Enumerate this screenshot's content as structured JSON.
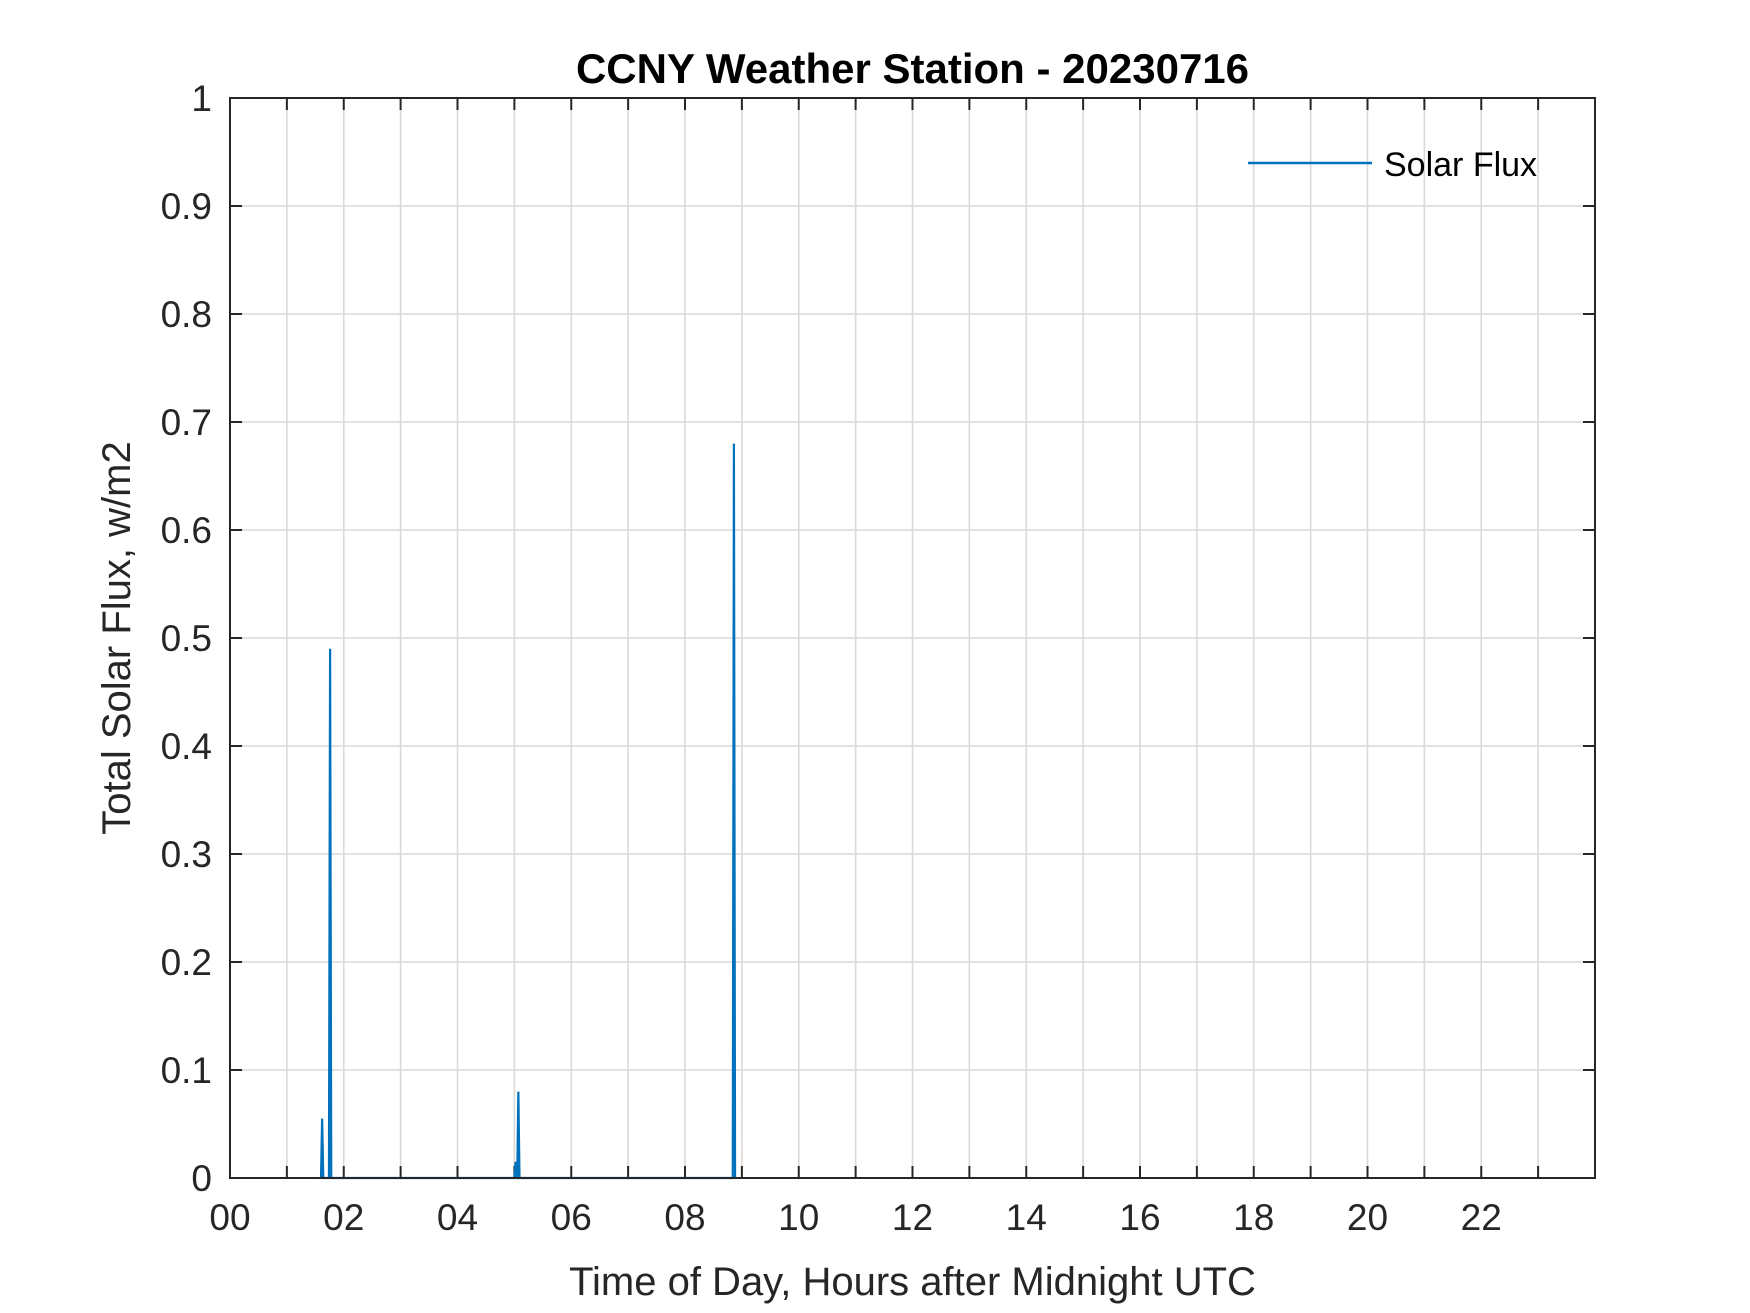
{
  "chart_data": {
    "type": "line",
    "title": "CCNY Weather Station - 20230716",
    "xlabel": "Time of Day, Hours after Midnight UTC",
    "ylabel": "Total Solar Flux, w/m2",
    "xlim": [
      0,
      24
    ],
    "ylim": [
      0,
      1
    ],
    "x_ticks": [
      0,
      2,
      4,
      6,
      8,
      10,
      12,
      14,
      16,
      18,
      20,
      22
    ],
    "x_tick_labels": [
      "00",
      "02",
      "04",
      "06",
      "08",
      "10",
      "12",
      "14",
      "16",
      "18",
      "20",
      "22"
    ],
    "x_minor_ticks": [
      0,
      1,
      2,
      3,
      4,
      5,
      6,
      7,
      8,
      9,
      10,
      11,
      12,
      13,
      14,
      15,
      16,
      17,
      18,
      19,
      20,
      21,
      22,
      23
    ],
    "y_ticks": [
      0,
      0.1,
      0.2,
      0.3,
      0.4,
      0.5,
      0.6,
      0.7,
      0.8,
      0.9,
      1
    ],
    "y_tick_labels": [
      "0",
      "0.1",
      "0.2",
      "0.3",
      "0.4",
      "0.5",
      "0.6",
      "0.7",
      "0.8",
      "0.9",
      "1"
    ],
    "grid": true,
    "legend_position": "top-right",
    "series": [
      {
        "name": "Solar Flux",
        "color": "#0072BD",
        "points": [
          {
            "x": 1.6,
            "y": 0
          },
          {
            "x": 1.62,
            "y": 0.055
          },
          {
            "x": 1.64,
            "y": 0
          },
          {
            "x": 1.74,
            "y": 0
          },
          {
            "x": 1.76,
            "y": 0.49
          },
          {
            "x": 1.78,
            "y": 0
          },
          {
            "x": 5.0,
            "y": 0
          },
          {
            "x": 5.02,
            "y": 0.015
          },
          {
            "x": 5.04,
            "y": 0
          },
          {
            "x": 5.05,
            "y": 0
          },
          {
            "x": 5.07,
            "y": 0.08
          },
          {
            "x": 5.09,
            "y": 0
          },
          {
            "x": 8.84,
            "y": 0
          },
          {
            "x": 8.86,
            "y": 0.68
          },
          {
            "x": 8.88,
            "y": 0
          }
        ]
      }
    ]
  }
}
